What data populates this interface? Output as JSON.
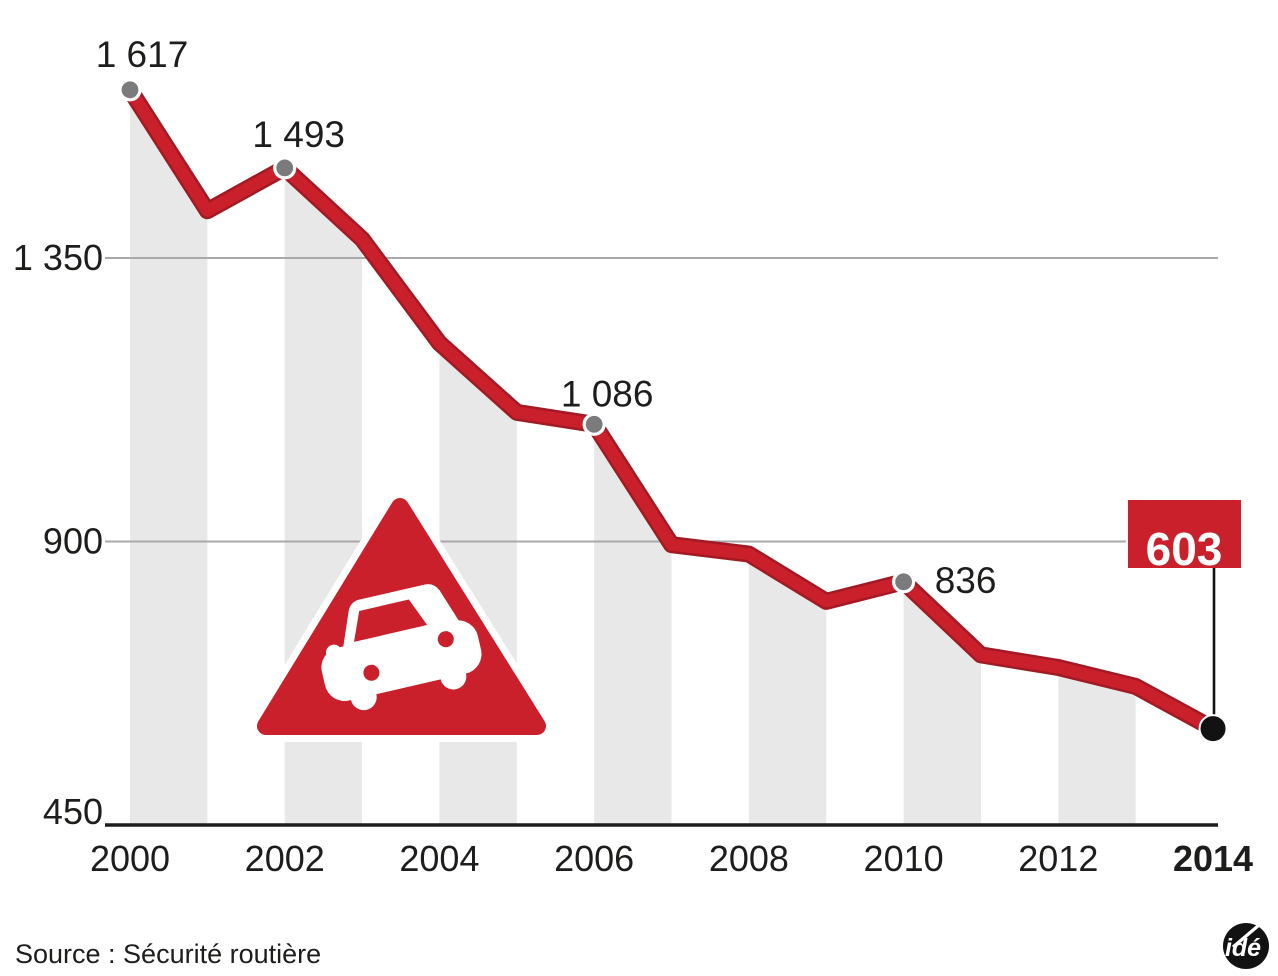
{
  "source": {
    "label": "Source : Sécurité routière"
  },
  "logo": {
    "text": "idé"
  },
  "colors": {
    "red": "#c9202c",
    "red_dark": "#a21a23",
    "stripe": "#e8e8e9",
    "grid": "#a9a9ab",
    "axis": "#1d1d1b",
    "dot_gray": "#7b7b7d",
    "dot_black": "#121212",
    "text": "#1d1d1b",
    "white": "#ffffff"
  },
  "chart_data": {
    "type": "line",
    "title": "",
    "xlabel": "",
    "ylabel": "",
    "x": [
      2000,
      2001,
      2002,
      2003,
      2004,
      2005,
      2006,
      2007,
      2008,
      2009,
      2010,
      2011,
      2012,
      2013,
      2014
    ],
    "series": [
      {
        "name": "Sécurité routière",
        "values": [
          1617,
          1425,
          1493,
          1380,
          1215,
          1105,
          1086,
          895,
          880,
          805,
          836,
          720,
          700,
          670,
          603
        ]
      }
    ],
    "point_labels": [
      {
        "year": 2000,
        "text": "1 617",
        "value": 1617
      },
      {
        "year": 2002,
        "text": "1 493",
        "value": 1493
      },
      {
        "year": 2006,
        "text": "1 086",
        "value": 1086
      },
      {
        "year": 2010,
        "text": "836",
        "value": 836
      },
      {
        "year": 2014,
        "text": "603",
        "value": 603,
        "callout": true
      }
    ],
    "y_axis": {
      "ticks": [
        {
          "label": "1 350",
          "value": 1350
        },
        {
          "label": "900",
          "value": 900
        },
        {
          "label": "450",
          "value": 450
        }
      ],
      "range": [
        450,
        1700
      ]
    },
    "x_axis": {
      "ticks": [
        {
          "label": "2000",
          "year": 2000
        },
        {
          "label": "2002",
          "year": 2002
        },
        {
          "label": "2004",
          "year": 2004
        },
        {
          "label": "2006",
          "year": 2006
        },
        {
          "label": "2008",
          "year": 2008
        },
        {
          "label": "2010",
          "year": 2010
        },
        {
          "label": "2012",
          "year": 2012
        },
        {
          "label": "2014",
          "year": 2014,
          "bold": true
        }
      ]
    },
    "legend": {
      "visible": false
    },
    "grid": "horizontal",
    "stripes": "alternate even-to-odd year area bands under the line"
  }
}
